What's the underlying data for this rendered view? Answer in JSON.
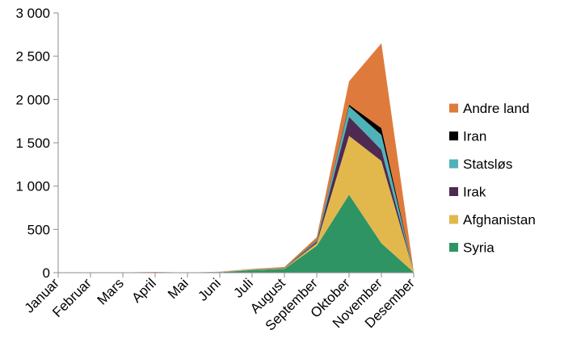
{
  "chart_data": {
    "type": "area",
    "stacked": true,
    "title": "",
    "xlabel": "",
    "ylabel": "",
    "categories": [
      "Januar",
      "Februar",
      "Mars",
      "April",
      "Mai",
      "Juni",
      "Juli",
      "August",
      "September",
      "Oktober",
      "November",
      "Desember"
    ],
    "ylim": [
      0,
      3000
    ],
    "y_ticks": [
      0,
      500,
      1000,
      1500,
      2000,
      2500,
      3000
    ],
    "y_tick_labels": [
      "0",
      "500",
      "1 000",
      "1 500",
      "2 000",
      "2 500",
      "3 000"
    ],
    "grid": false,
    "legend_position": "right",
    "series": [
      {
        "name": "Syria",
        "color": "#2e9464",
        "values": [
          0,
          0,
          2,
          3,
          1,
          5,
          30,
          45,
          310,
          900,
          340,
          5
        ]
      },
      {
        "name": "Afghanistan",
        "color": "#e2b84c",
        "values": [
          0,
          0,
          1,
          2,
          0,
          2,
          5,
          5,
          30,
          680,
          950,
          3
        ]
      },
      {
        "name": "Irak",
        "color": "#4e2a52",
        "values": [
          0,
          0,
          0,
          1,
          0,
          1,
          2,
          3,
          20,
          220,
          130,
          1
        ]
      },
      {
        "name": "Statsløs",
        "color": "#4fb2b8",
        "values": [
          0,
          0,
          0,
          0,
          0,
          1,
          2,
          2,
          15,
          120,
          170,
          1
        ]
      },
      {
        "name": "Iran",
        "color": "#000000",
        "values": [
          0,
          0,
          0,
          0,
          0,
          0,
          1,
          1,
          5,
          20,
          80,
          0
        ]
      },
      {
        "name": "Andre land",
        "color": "#de7b3c",
        "values": [
          0,
          0,
          1,
          2,
          1,
          2,
          5,
          9,
          30,
          270,
          980,
          3
        ]
      }
    ]
  }
}
